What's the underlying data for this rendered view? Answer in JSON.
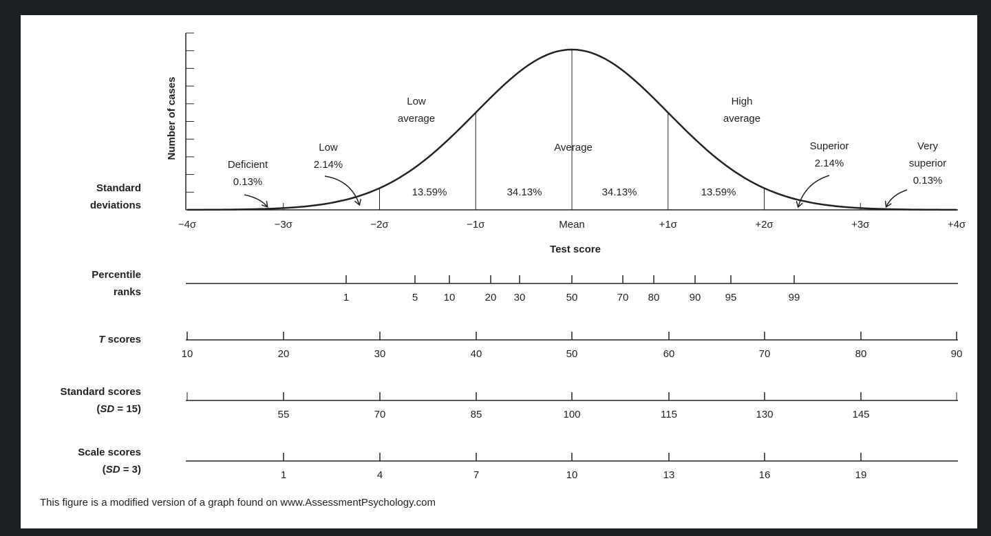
{
  "figure": {
    "y_axis_label": "Number of cases",
    "sd_row_label": [
      "Standard",
      "deviations"
    ],
    "sigma_labels": [
      "−4σ",
      "−3σ",
      "−2σ",
      "−1σ",
      "Mean",
      "+1σ",
      "+2σ",
      "+3σ",
      "+4σ"
    ],
    "x_axis_label": "Test score",
    "band_percents": [
      "13.59%",
      "34.13%",
      "34.13%",
      "13.59%"
    ],
    "regions": [
      {
        "lines": [
          "Deficient",
          "0.13%"
        ]
      },
      {
        "lines": [
          "Low",
          "2.14%"
        ]
      },
      {
        "lines": [
          "Low",
          "average"
        ]
      },
      {
        "lines": [
          "Average"
        ]
      },
      {
        "lines": [
          "High",
          "average"
        ]
      },
      {
        "lines": [
          "Superior",
          "2.14%"
        ]
      },
      {
        "lines": [
          "Very",
          "superior",
          "0.13%"
        ]
      }
    ]
  },
  "scales": [
    {
      "label": [
        [
          {
            "text": "Percentile"
          }
        ],
        [
          {
            "text": "ranks"
          }
        ]
      ],
      "values": [
        1,
        5,
        10,
        20,
        30,
        50,
        70,
        80,
        90,
        95,
        99
      ]
    },
    {
      "label": [
        [
          {
            "text": "T",
            "italic": true
          },
          {
            "text": " scores"
          }
        ]
      ],
      "values": [
        10,
        20,
        30,
        40,
        50,
        60,
        70,
        80,
        90
      ]
    },
    {
      "label": [
        [
          {
            "text": "Standard scores"
          }
        ],
        [
          {
            "text": "("
          },
          {
            "text": "SD",
            "italic": true
          },
          {
            "text": " = 15)"
          }
        ]
      ],
      "values": [
        55,
        70,
        85,
        100,
        115,
        130,
        145
      ]
    },
    {
      "label": [
        [
          {
            "text": "Scale scores"
          }
        ],
        [
          {
            "text": "("
          },
          {
            "text": "SD",
            "italic": true
          },
          {
            "text": " = 3)"
          }
        ]
      ],
      "values": [
        1,
        4,
        7,
        10,
        13,
        16,
        19
      ]
    }
  ],
  "footnote": "This figure is a modified version of a graph found on www.AssessmentPsychology.com"
}
